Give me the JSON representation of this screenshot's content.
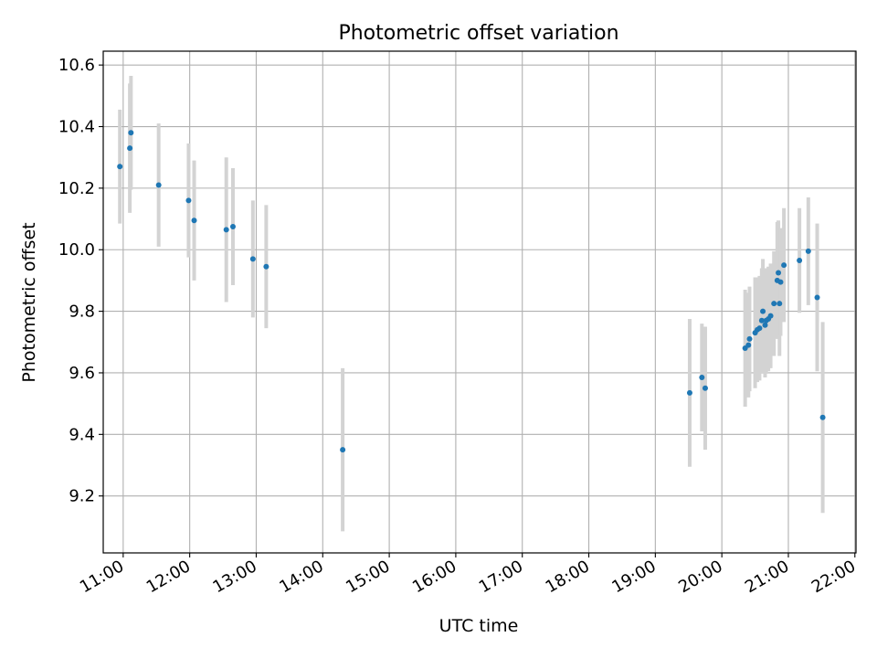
{
  "chart_data": {
    "type": "scatter",
    "title": "Photometric offset variation",
    "xlabel": "UTC time",
    "ylabel": "Photometric offset",
    "xlim": [
      "10:42",
      "22:01"
    ],
    "ylim": [
      9.015,
      10.645
    ],
    "grid": true,
    "x_ticks": [
      "11:00",
      "12:00",
      "13:00",
      "14:00",
      "15:00",
      "16:00",
      "17:00",
      "18:00",
      "19:00",
      "20:00",
      "21:00",
      "22:00"
    ],
    "y_ticks": [
      "9.2",
      "9.4",
      "9.6",
      "9.8",
      "10.0",
      "10.2",
      "10.4",
      "10.6"
    ],
    "y_tick_values": [
      9.2,
      9.4,
      9.6,
      9.8,
      10.0,
      10.2,
      10.4,
      10.6
    ],
    "point_color": "#1f77b4",
    "errorbar_color": "#d3d3d3",
    "series": [
      {
        "points": [
          {
            "t": "10:57",
            "y": 10.27,
            "err": 0.185
          },
          {
            "t": "11:06",
            "y": 10.33,
            "err": 0.21
          },
          {
            "t": "11:07",
            "y": 10.38,
            "err": 0.185
          },
          {
            "t": "11:32",
            "y": 10.21,
            "err": 0.2
          },
          {
            "t": "11:59",
            "y": 10.16,
            "err": 0.185
          },
          {
            "t": "12:04",
            "y": 10.095,
            "err": 0.195
          },
          {
            "t": "12:33",
            "y": 10.065,
            "err": 0.235
          },
          {
            "t": "12:39",
            "y": 10.075,
            "err": 0.19
          },
          {
            "t": "12:57",
            "y": 9.97,
            "err": 0.19
          },
          {
            "t": "13:09",
            "y": 9.945,
            "err": 0.2
          },
          {
            "t": "14:18",
            "y": 9.35,
            "err": 0.265
          },
          {
            "t": "19:31",
            "y": 9.535,
            "err": 0.24
          },
          {
            "t": "19:42",
            "y": 9.585,
            "err": 0.175
          },
          {
            "t": "19:45",
            "y": 9.55,
            "err": 0.2
          },
          {
            "t": "20:21",
            "y": 9.68,
            "err": 0.19
          },
          {
            "t": "20:24",
            "y": 9.69,
            "err": 0.17
          },
          {
            "t": "20:25",
            "y": 9.71,
            "err": 0.17
          },
          {
            "t": "20:30",
            "y": 9.73,
            "err": 0.18
          },
          {
            "t": "20:32",
            "y": 9.74,
            "err": 0.17
          },
          {
            "t": "20:34",
            "y": 9.745,
            "err": 0.17
          },
          {
            "t": "20:36",
            "y": 9.77,
            "err": 0.17
          },
          {
            "t": "20:37",
            "y": 9.8,
            "err": 0.17
          },
          {
            "t": "20:39",
            "y": 9.755,
            "err": 0.17
          },
          {
            "t": "20:40",
            "y": 9.77,
            "err": 0.17
          },
          {
            "t": "20:42",
            "y": 9.775,
            "err": 0.17
          },
          {
            "t": "20:44",
            "y": 9.785,
            "err": 0.17
          },
          {
            "t": "20:47",
            "y": 9.825,
            "err": 0.17
          },
          {
            "t": "20:50",
            "y": 9.9,
            "err": 0.19
          },
          {
            "t": "20:51",
            "y": 9.925,
            "err": 0.17
          },
          {
            "t": "20:52",
            "y": 9.825,
            "err": 0.17
          },
          {
            "t": "20:53",
            "y": 9.895,
            "err": 0.175
          },
          {
            "t": "20:56",
            "y": 9.95,
            "err": 0.185
          },
          {
            "t": "21:10",
            "y": 9.965,
            "err": 0.17
          },
          {
            "t": "21:18",
            "y": 9.995,
            "err": 0.175
          },
          {
            "t": "21:26",
            "y": 9.845,
            "err": 0.24
          },
          {
            "t": "21:31",
            "y": 9.455,
            "err": 0.31
          }
        ]
      }
    ]
  }
}
